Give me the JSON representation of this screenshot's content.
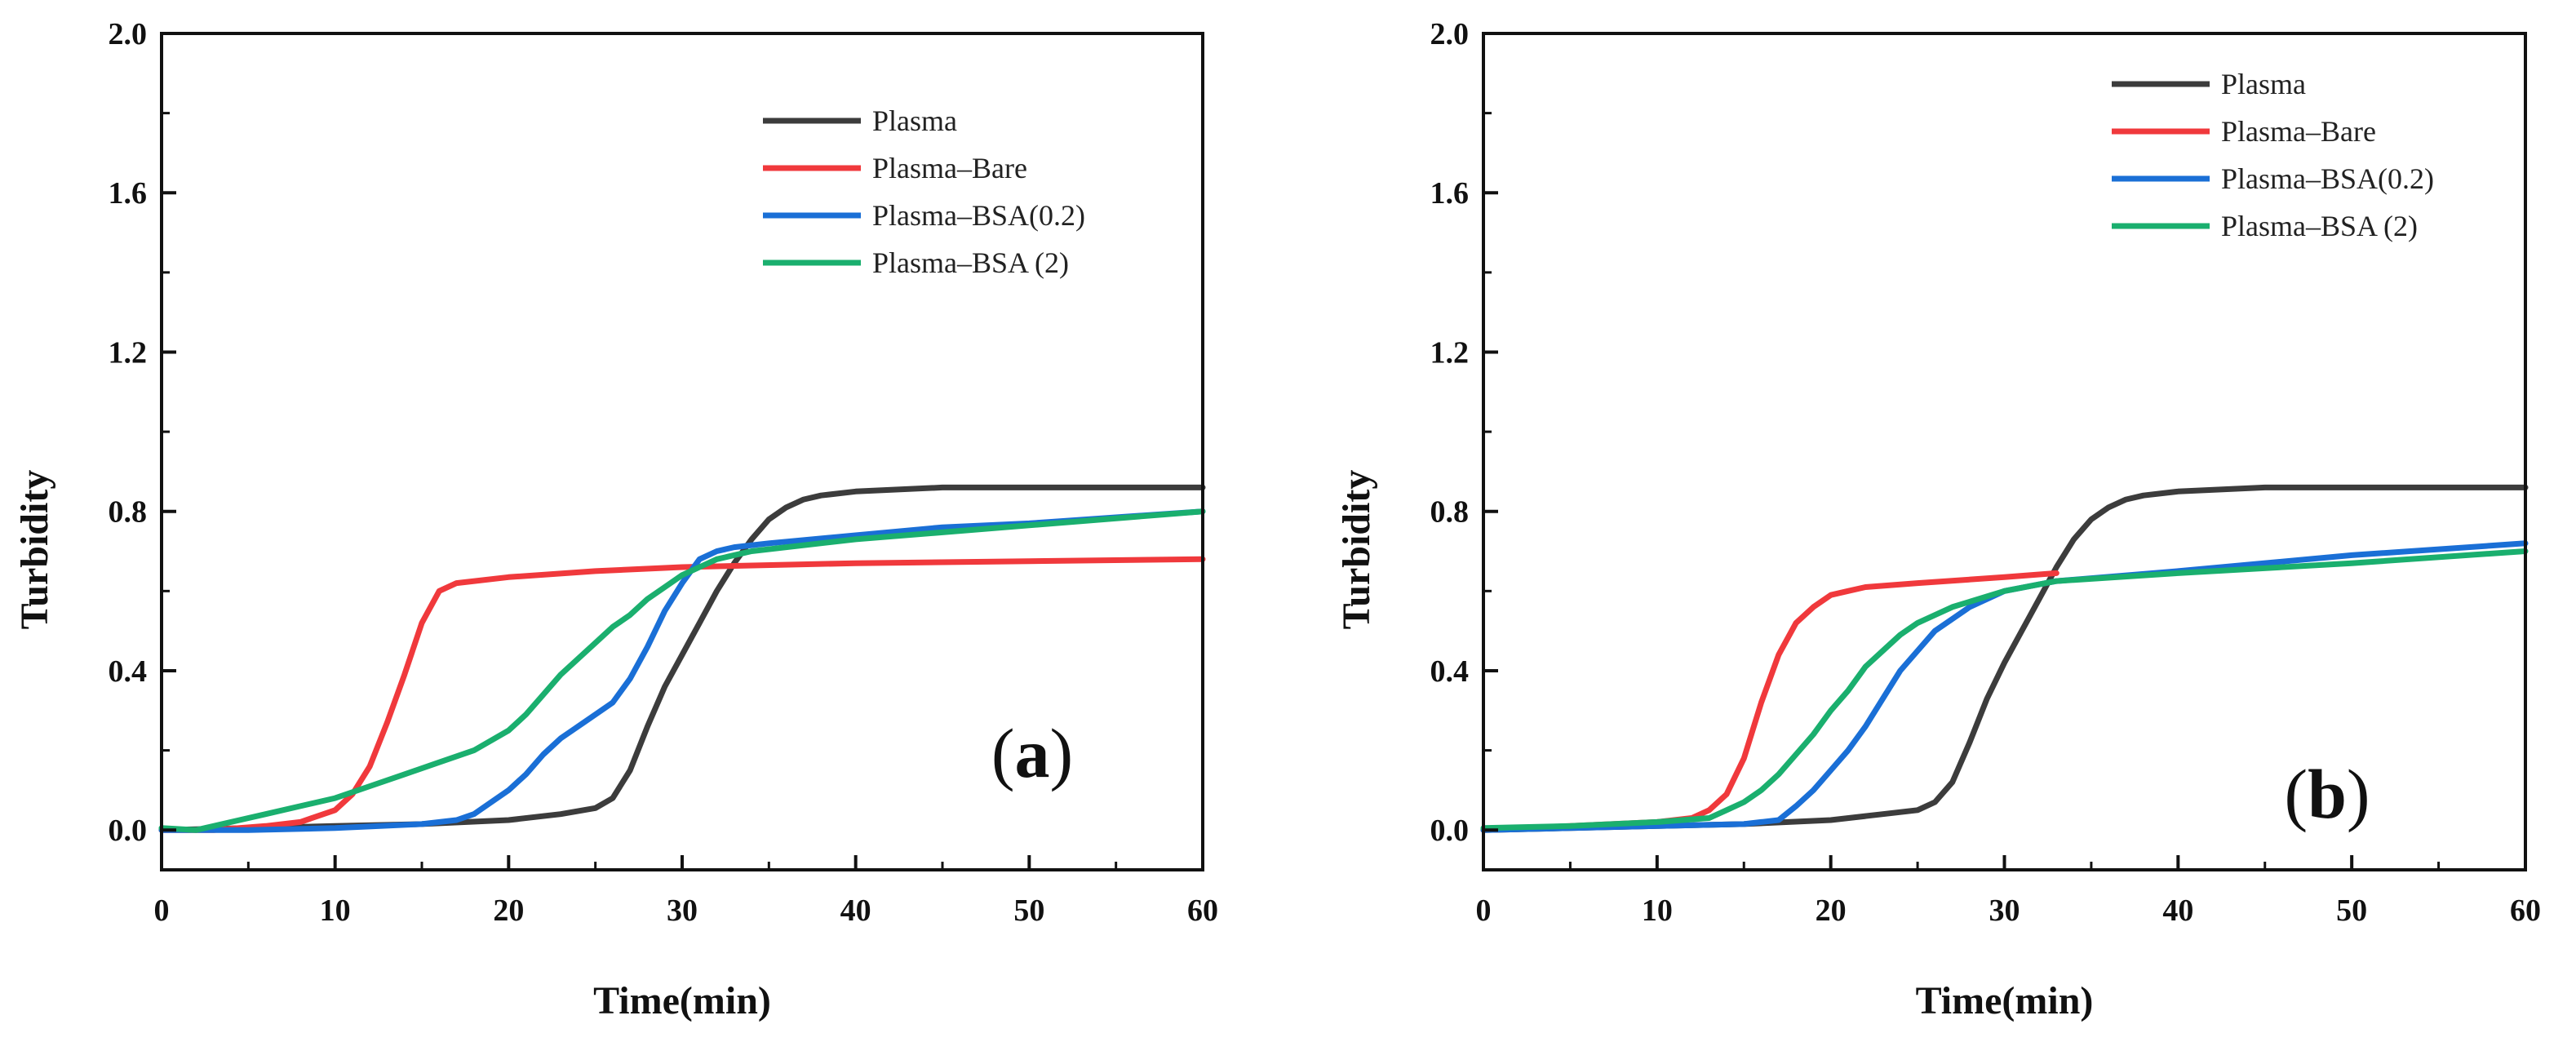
{
  "chart_data": [
    {
      "type": "line",
      "panel_label": {
        "open": "(",
        "letter": "a",
        "close": ")"
      },
      "xlabel": "Time(min)",
      "ylabel": "Turbidity",
      "xlim": [
        0,
        60
      ],
      "ylim": [
        -0.1,
        2.0
      ],
      "xticks": [
        "0",
        "10",
        "20",
        "30",
        "40",
        "50",
        "60"
      ],
      "yticks": [
        "0.0",
        "0.4",
        "0.8",
        "1.2",
        "1.6",
        "2.0"
      ],
      "grid": false,
      "legend_position": "top-right",
      "series": [
        {
          "name": "Plasma",
          "color": "#3c3c3c",
          "points": [
            [
              0,
              0.0
            ],
            [
              5,
              0.005
            ],
            [
              10,
              0.01
            ],
            [
              15,
              0.015
            ],
            [
              20,
              0.025
            ],
            [
              23,
              0.04
            ],
            [
              25,
              0.055
            ],
            [
              26,
              0.08
            ],
            [
              27,
              0.15
            ],
            [
              28,
              0.26
            ],
            [
              29,
              0.36
            ],
            [
              30,
              0.44
            ],
            [
              31,
              0.52
            ],
            [
              32,
              0.6
            ],
            [
              33,
              0.67
            ],
            [
              34,
              0.73
            ],
            [
              35,
              0.78
            ],
            [
              36,
              0.81
            ],
            [
              37,
              0.83
            ],
            [
              38,
              0.84
            ],
            [
              40,
              0.85
            ],
            [
              45,
              0.86
            ],
            [
              50,
              0.86
            ],
            [
              60,
              0.86
            ]
          ]
        },
        {
          "name": "Plasma–Bare",
          "color": "#f0393c",
          "points": [
            [
              0,
              0.0
            ],
            [
              3,
              0.0
            ],
            [
              6,
              0.01
            ],
            [
              8,
              0.02
            ],
            [
              10,
              0.05
            ],
            [
              11,
              0.09
            ],
            [
              12,
              0.16
            ],
            [
              13,
              0.27
            ],
            [
              14,
              0.39
            ],
            [
              15,
              0.52
            ],
            [
              16,
              0.6
            ],
            [
              17,
              0.62
            ],
            [
              20,
              0.635
            ],
            [
              25,
              0.65
            ],
            [
              30,
              0.66
            ],
            [
              40,
              0.67
            ],
            [
              50,
              0.675
            ],
            [
              60,
              0.68
            ]
          ]
        },
        {
          "name": "Plasma–BSA(0.2)",
          "color": "#1a6fd6",
          "points": [
            [
              0,
              0.0
            ],
            [
              5,
              0.0
            ],
            [
              10,
              0.005
            ],
            [
              15,
              0.015
            ],
            [
              17,
              0.025
            ],
            [
              18,
              0.04
            ],
            [
              19,
              0.07
            ],
            [
              20,
              0.1
            ],
            [
              21,
              0.14
            ],
            [
              22,
              0.19
            ],
            [
              23,
              0.23
            ],
            [
              24,
              0.26
            ],
            [
              25,
              0.29
            ],
            [
              26,
              0.32
            ],
            [
              27,
              0.38
            ],
            [
              28,
              0.46
            ],
            [
              29,
              0.55
            ],
            [
              30,
              0.62
            ],
            [
              31,
              0.68
            ],
            [
              32,
              0.7
            ],
            [
              33,
              0.71
            ],
            [
              35,
              0.72
            ],
            [
              40,
              0.74
            ],
            [
              45,
              0.76
            ],
            [
              50,
              0.77
            ],
            [
              55,
              0.785
            ],
            [
              60,
              0.8
            ]
          ]
        },
        {
          "name": "Plasma–BSA (2)",
          "color": "#1aaf6e",
          "points": [
            [
              0,
              0.005
            ],
            [
              2,
              0.0
            ],
            [
              4,
              0.02
            ],
            [
              6,
              0.04
            ],
            [
              8,
              0.06
            ],
            [
              10,
              0.08
            ],
            [
              12,
              0.11
            ],
            [
              14,
              0.14
            ],
            [
              16,
              0.17
            ],
            [
              18,
              0.2
            ],
            [
              20,
              0.25
            ],
            [
              21,
              0.29
            ],
            [
              22,
              0.34
            ],
            [
              23,
              0.39
            ],
            [
              24,
              0.43
            ],
            [
              25,
              0.47
            ],
            [
              26,
              0.51
            ],
            [
              27,
              0.54
            ],
            [
              28,
              0.58
            ],
            [
              29,
              0.61
            ],
            [
              30,
              0.64
            ],
            [
              31,
              0.66
            ],
            [
              32,
              0.68
            ],
            [
              34,
              0.7
            ],
            [
              40,
              0.73
            ],
            [
              50,
              0.765
            ],
            [
              60,
              0.8
            ]
          ]
        }
      ]
    },
    {
      "type": "line",
      "panel_label": {
        "open": "(",
        "letter": "b",
        "close": ")"
      },
      "xlabel": "Time(min)",
      "ylabel": "Turbidity",
      "xlim": [
        0,
        60
      ],
      "ylim": [
        -0.1,
        2.0
      ],
      "xticks": [
        "0",
        "10",
        "20",
        "30",
        "40",
        "50",
        "60"
      ],
      "yticks": [
        "0.0",
        "0.4",
        "0.8",
        "1.2",
        "1.6",
        "2.0"
      ],
      "grid": false,
      "legend_position": "top-right",
      "series": [
        {
          "name": "Plasma",
          "color": "#3c3c3c",
          "points": [
            [
              0,
              0.0
            ],
            [
              5,
              0.005
            ],
            [
              10,
              0.01
            ],
            [
              15,
              0.015
            ],
            [
              20,
              0.025
            ],
            [
              23,
              0.04
            ],
            [
              25,
              0.05
            ],
            [
              26,
              0.07
            ],
            [
              27,
              0.12
            ],
            [
              28,
              0.22
            ],
            [
              29,
              0.33
            ],
            [
              30,
              0.42
            ],
            [
              31,
              0.5
            ],
            [
              32,
              0.58
            ],
            [
              33,
              0.66
            ],
            [
              34,
              0.73
            ],
            [
              35,
              0.78
            ],
            [
              36,
              0.81
            ],
            [
              37,
              0.83
            ],
            [
              38,
              0.84
            ],
            [
              40,
              0.85
            ],
            [
              45,
              0.86
            ],
            [
              60,
              0.86
            ]
          ]
        },
        {
          "name": "Plasma–Bare",
          "color": "#f0393c",
          "points": [
            [
              0,
              0.0
            ],
            [
              5,
              0.01
            ],
            [
              10,
              0.02
            ],
            [
              12,
              0.03
            ],
            [
              13,
              0.05
            ],
            [
              14,
              0.09
            ],
            [
              15,
              0.18
            ],
            [
              16,
              0.32
            ],
            [
              17,
              0.44
            ],
            [
              18,
              0.52
            ],
            [
              19,
              0.56
            ],
            [
              20,
              0.59
            ],
            [
              21,
              0.6
            ],
            [
              22,
              0.61
            ],
            [
              25,
              0.62
            ],
            [
              30,
              0.635
            ],
            [
              33,
              0.645
            ]
          ]
        },
        {
          "name": "Plasma–BSA(0.2)",
          "color": "#1a6fd6",
          "points": [
            [
              0,
              0.0
            ],
            [
              5,
              0.005
            ],
            [
              10,
              0.01
            ],
            [
              15,
              0.015
            ],
            [
              16,
              0.02
            ],
            [
              17,
              0.025
            ],
            [
              18,
              0.06
            ],
            [
              19,
              0.1
            ],
            [
              20,
              0.15
            ],
            [
              21,
              0.2
            ],
            [
              22,
              0.26
            ],
            [
              23,
              0.33
            ],
            [
              24,
              0.4
            ],
            [
              25,
              0.45
            ],
            [
              26,
              0.5
            ],
            [
              27,
              0.53
            ],
            [
              28,
              0.56
            ],
            [
              30,
              0.6
            ],
            [
              33,
              0.625
            ],
            [
              40,
              0.65
            ],
            [
              50,
              0.69
            ],
            [
              60,
              0.72
            ]
          ]
        },
        {
          "name": "Plasma–BSA (2)",
          "color": "#1aaf6e",
          "points": [
            [
              0,
              0.005
            ],
            [
              5,
              0.01
            ],
            [
              10,
              0.02
            ],
            [
              13,
              0.03
            ],
            [
              14,
              0.05
            ],
            [
              15,
              0.07
            ],
            [
              16,
              0.1
            ],
            [
              17,
              0.14
            ],
            [
              18,
              0.19
            ],
            [
              19,
              0.24
            ],
            [
              20,
              0.3
            ],
            [
              21,
              0.35
            ],
            [
              22,
              0.41
            ],
            [
              23,
              0.45
            ],
            [
              24,
              0.49
            ],
            [
              25,
              0.52
            ],
            [
              27,
              0.56
            ],
            [
              30,
              0.6
            ],
            [
              33,
              0.625
            ],
            [
              40,
              0.645
            ],
            [
              50,
              0.67
            ],
            [
              60,
              0.7
            ]
          ]
        }
      ]
    }
  ]
}
